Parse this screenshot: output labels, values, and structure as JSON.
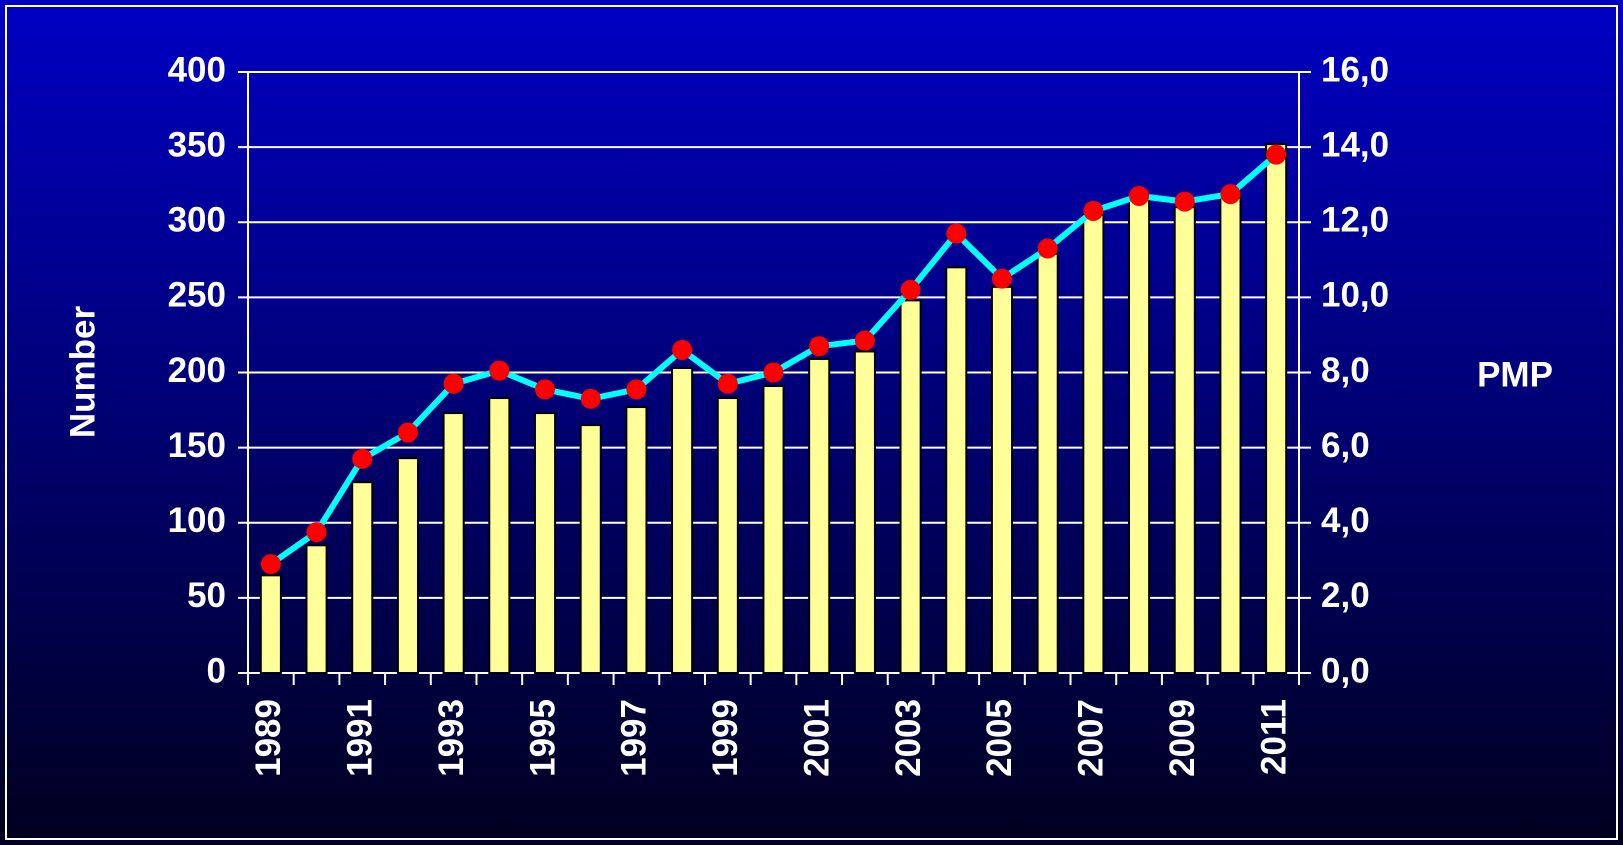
{
  "chart_data": {
    "type": "bar",
    "categories": [
      "1989",
      null,
      "1991",
      null,
      "1993",
      null,
      "1995",
      null,
      "1997",
      null,
      "1999",
      null,
      "2001",
      null,
      "2003",
      null,
      "2005",
      null,
      "2007",
      null,
      "2009",
      null,
      "2011"
    ],
    "series": [
      {
        "name": "Number",
        "type": "bar",
        "color": "#ffff99",
        "values": [
          65,
          85,
          127,
          143,
          173,
          183,
          173,
          165,
          177,
          203,
          183,
          191,
          209,
          214,
          248,
          270,
          257,
          279,
          305,
          315,
          310,
          318,
          352
        ]
      },
      {
        "name": "PMP",
        "type": "line",
        "axis": "y2",
        "color": "#00ffff",
        "marker_color": "#ff0000",
        "values": [
          2.9,
          3.75,
          5.7,
          6.4,
          7.7,
          8.05,
          7.55,
          7.3,
          7.55,
          8.6,
          7.7,
          8.0,
          8.7,
          8.85,
          10.2,
          11.7,
          10.5,
          11.3,
          12.3,
          12.7,
          12.55,
          12.75,
          13.8
        ]
      }
    ],
    "ylabel": "Number",
    "y2label": "PMP",
    "ylim": [
      0,
      400
    ],
    "yticks": [
      0,
      50,
      100,
      150,
      200,
      250,
      300,
      350,
      400
    ],
    "y2lim": [
      0,
      16
    ],
    "y2ticks": [
      {
        "value": 0,
        "label": "0,0"
      },
      {
        "value": 2,
        "label": "2,0"
      },
      {
        "value": 4,
        "label": "4,0"
      },
      {
        "value": 6,
        "label": "6,0"
      },
      {
        "value": 8,
        "label": "8,0"
      },
      {
        "value": 10,
        "label": "10,0"
      },
      {
        "value": 12,
        "label": "12,0"
      },
      {
        "value": 14,
        "label": "14,0"
      },
      {
        "value": 16,
        "label": "16,0"
      }
    ],
    "grid": true
  }
}
